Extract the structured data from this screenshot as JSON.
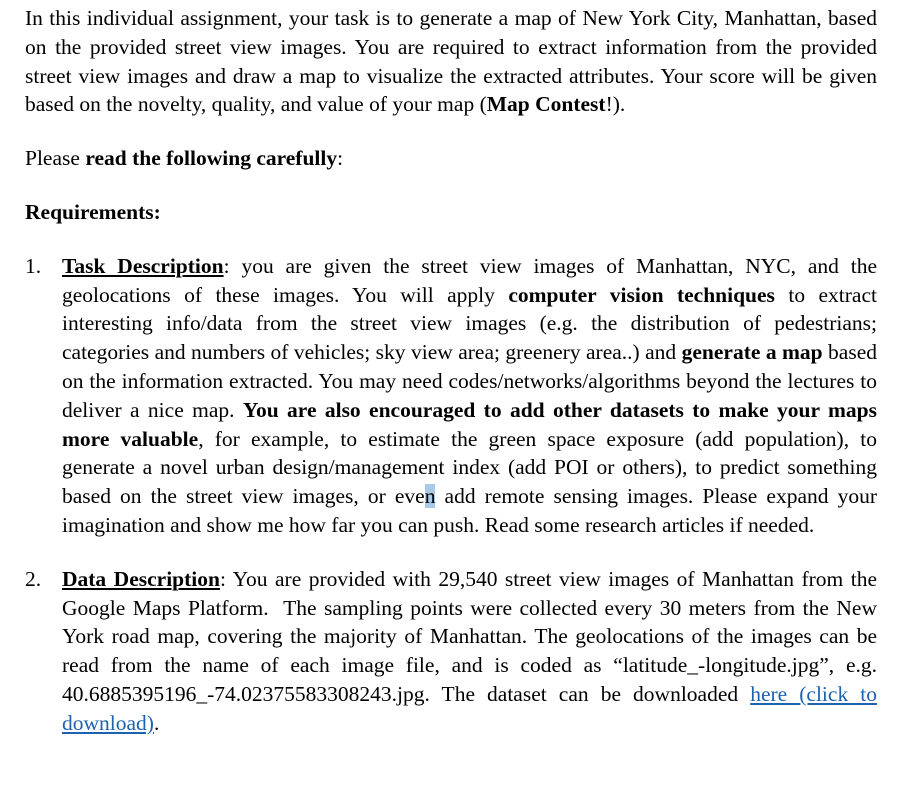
{
  "page": {
    "background": "#ffffff",
    "text_color": "#000000",
    "link_color": "#1c62b0",
    "selection_highlight_color": "#a9c9e8"
  },
  "document": {
    "blocks": [
      {
        "type": "paragraph",
        "name": "intro-paragraph",
        "runs": [
          {
            "text": "In this individual assignment, your task is to generate a map of New York City, Manhattan, based on the provided street view images. You are required to extract information from the provided street view images and draw a map to visualize the extracted attributes. Your score will be given based on the novelty, quality, and value of your map ("
          },
          {
            "text": "Map Contest",
            "bold": true
          },
          {
            "text": "!)."
          }
        ]
      },
      {
        "type": "paragraph",
        "name": "read-carefully-line",
        "runs": [
          {
            "text": "Please "
          },
          {
            "text": "read the following carefully",
            "bold": true
          },
          {
            "text": ":"
          }
        ]
      },
      {
        "type": "paragraph",
        "name": "requirements-heading",
        "runs": [
          {
            "text": "Requirements:",
            "bold": true
          }
        ]
      },
      {
        "type": "list-item",
        "number": "1.",
        "name": "task-description-item",
        "runs": [
          {
            "text": "Task Description",
            "bold": true,
            "underline": true
          },
          {
            "text": ": you are given the street view images of Manhattan, NYC, and the geolocations of these images. You will apply "
          },
          {
            "text": "computer vision techniques",
            "bold": true
          },
          {
            "text": " to extract interesting info/data from the street view images (e.g. the distribution of pedestrians; categories and numbers of vehicles; sky view area; greenery area..) and "
          },
          {
            "text": "generate a map",
            "bold": true
          },
          {
            "text": " based on the information extracted. You may need codes/networks/algorithms beyond the lectures to deliver a nice map. "
          },
          {
            "text": "You are also encouraged to add other datasets to make your maps more valuable",
            "bold": true
          },
          {
            "text": ", for example, to estimate the green space exposure (add population), to generate a novel urban design/management index (add POI or others), to predict something based on the street view images, or eve"
          },
          {
            "text": "n",
            "highlight": true
          },
          {
            "text": " add remote sensing images. Please expand your imagination and show me how far you can push. Read some research articles if needed."
          }
        ]
      },
      {
        "type": "list-item",
        "number": "2.",
        "name": "data-description-item",
        "runs": [
          {
            "text": "Data Description",
            "bold": true,
            "underline": true
          },
          {
            "text": ": You are provided with 29,540 street view images of Manhattan from the Google Maps Platform.  The sampling points were collected every 30 meters from the New York road map, covering the majority of Manhattan. The geolocations of the images can be read from the name of each image file, and is coded as “latitude_-longitude.jpg”, e.g. 40.6885395196_-74.02375583308243.jpg. The dataset can be downloaded "
          },
          {
            "text": "here (click to download)",
            "link": true
          },
          {
            "text": "."
          }
        ]
      }
    ]
  }
}
